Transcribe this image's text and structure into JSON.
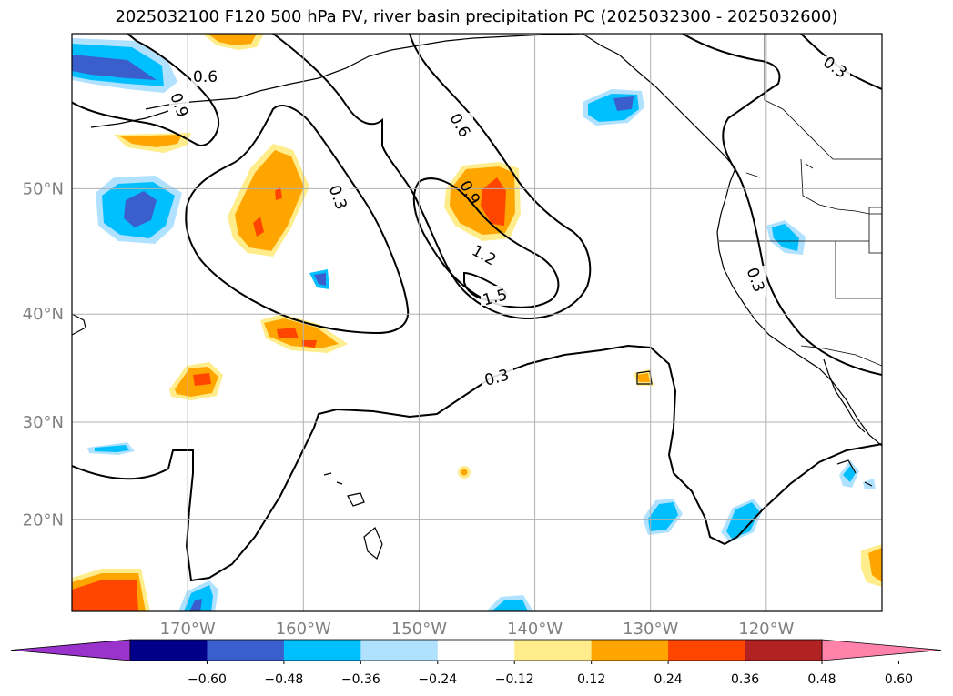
{
  "title": "2025032100 F120 500 hPa PV, river basin precipitation PC (2025032300 - 2025032600)",
  "map": {
    "lon_range": [
      -180,
      -110
    ],
    "lat_range": [
      10,
      60
    ],
    "lat_ticks": [
      {
        "lat": 20,
        "label": "20°N"
      },
      {
        "lat": 30,
        "label": "30°N"
      },
      {
        "lat": 40,
        "label": "40°N"
      },
      {
        "lat": 50,
        "label": "50°N"
      }
    ],
    "lon_ticks": [
      {
        "lon": -170,
        "label": "170°W"
      },
      {
        "lon": -160,
        "label": "160°W"
      },
      {
        "lon": -150,
        "label": "150°W"
      },
      {
        "lon": -140,
        "label": "140°W"
      },
      {
        "lon": -130,
        "label": "130°W"
      },
      {
        "lon": -120,
        "label": "120°W"
      }
    ],
    "grid": true,
    "contour_labels": [
      "0.3",
      "0.3",
      "0.3",
      "0.3",
      "0.6",
      "0.6",
      "0.9",
      "0.9",
      "1.2",
      "1.5"
    ]
  },
  "colorbar": {
    "colors": [
      "#9933cc",
      "#00008b",
      "#3a5fcd",
      "#00bfff",
      "#b0e2ff",
      "#ffffff",
      "#ffec8b",
      "#ffa500",
      "#ff4500",
      "#b22222",
      "#ff82ab"
    ],
    "tick_labels": [
      "−0.60",
      "−0.48",
      "−0.36",
      "−0.24",
      "−0.12",
      "0.12",
      "0.24",
      "0.36",
      "0.48",
      "0.60"
    ]
  }
}
